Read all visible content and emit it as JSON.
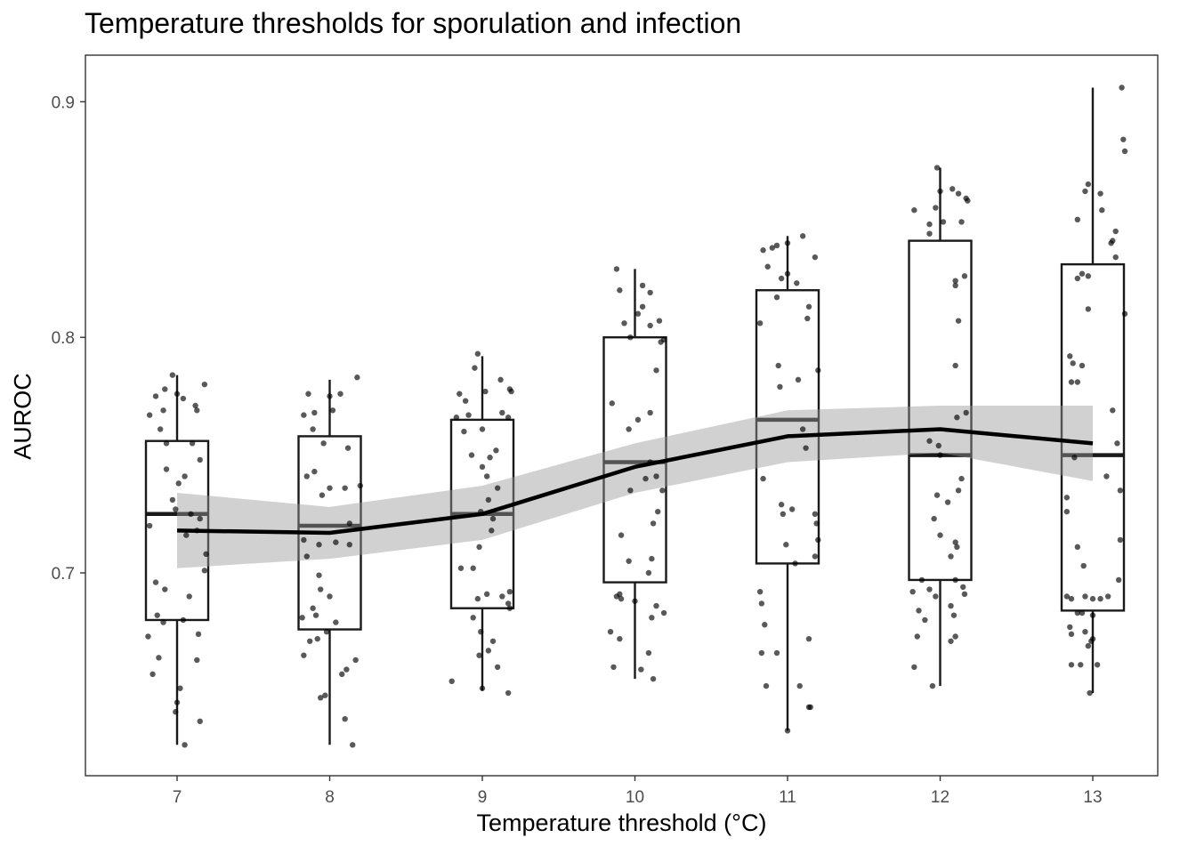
{
  "chart_data": {
    "type": "boxplot",
    "title": "Temperature thresholds for sporulation and infection",
    "xlabel": "Temperature threshold (°C)",
    "ylabel": "AUROC",
    "categories": [
      "7",
      "8",
      "9",
      "10",
      "11",
      "12",
      "13"
    ],
    "ylim": [
      0.62,
      0.92
    ],
    "yticks": [
      0.7,
      0.8,
      0.9
    ],
    "ytick_labels": [
      "0.7",
      "0.8",
      "0.9"
    ],
    "grid": false,
    "boxes": [
      {
        "category": "7",
        "whisker_low": 0.627,
        "q1": 0.68,
        "median": 0.725,
        "q3": 0.756,
        "whisker_high": 0.784
      },
      {
        "category": "8",
        "whisker_low": 0.627,
        "q1": 0.676,
        "median": 0.72,
        "q3": 0.758,
        "whisker_high": 0.782
      },
      {
        "category": "9",
        "whisker_low": 0.65,
        "q1": 0.685,
        "median": 0.725,
        "q3": 0.765,
        "whisker_high": 0.792
      },
      {
        "category": "10",
        "whisker_low": 0.655,
        "q1": 0.696,
        "median": 0.747,
        "q3": 0.8,
        "whisker_high": 0.829
      },
      {
        "category": "11",
        "whisker_low": 0.633,
        "q1": 0.704,
        "median": 0.765,
        "q3": 0.82,
        "whisker_high": 0.843
      },
      {
        "category": "12",
        "whisker_low": 0.652,
        "q1": 0.697,
        "median": 0.75,
        "q3": 0.841,
        "whisker_high": 0.872
      },
      {
        "category": "13",
        "whisker_low": 0.649,
        "q1": 0.684,
        "median": 0.75,
        "q3": 0.831,
        "whisker_high": 0.906
      }
    ],
    "trend_line": {
      "x": [
        7,
        8,
        9,
        10,
        11,
        12,
        13
      ],
      "y": [
        0.718,
        0.717,
        0.725,
        0.745,
        0.758,
        0.761,
        0.755
      ],
      "ci_lower": [
        0.702,
        0.706,
        0.714,
        0.734,
        0.747,
        0.751,
        0.739
      ],
      "ci_upper": [
        0.734,
        0.728,
        0.737,
        0.755,
        0.769,
        0.771,
        0.771
      ]
    },
    "jitter_points": [
      {
        "x": 6.82,
        "y": 0.767
      },
      {
        "x": 6.86,
        "y": 0.775
      },
      {
        "x": 6.91,
        "y": 0.769
      },
      {
        "x": 6.92,
        "y": 0.778
      },
      {
        "x": 7.0,
        "y": 0.776
      },
      {
        "x": 7.04,
        "y": 0.774
      },
      {
        "x": 7.12,
        "y": 0.771
      },
      {
        "x": 7.13,
        "y": 0.769
      },
      {
        "x": 6.89,
        "y": 0.761
      },
      {
        "x": 6.93,
        "y": 0.755
      },
      {
        "x": 7.1,
        "y": 0.755
      },
      {
        "x": 7.15,
        "y": 0.748
      },
      {
        "x": 6.93,
        "y": 0.744
      },
      {
        "x": 7.05,
        "y": 0.741
      },
      {
        "x": 7.01,
        "y": 0.738
      },
      {
        "x": 6.97,
        "y": 0.731
      },
      {
        "x": 6.99,
        "y": 0.727
      },
      {
        "x": 7.09,
        "y": 0.725
      },
      {
        "x": 7.15,
        "y": 0.723
      },
      {
        "x": 6.82,
        "y": 0.72
      },
      {
        "x": 7.13,
        "y": 0.718
      },
      {
        "x": 7.06,
        "y": 0.716
      },
      {
        "x": 7.19,
        "y": 0.708
      },
      {
        "x": 7.18,
        "y": 0.701
      },
      {
        "x": 6.86,
        "y": 0.696
      },
      {
        "x": 6.92,
        "y": 0.693
      },
      {
        "x": 7.08,
        "y": 0.69
      },
      {
        "x": 6.87,
        "y": 0.682
      },
      {
        "x": 6.91,
        "y": 0.679
      },
      {
        "x": 7.04,
        "y": 0.68
      },
      {
        "x": 7.14,
        "y": 0.674
      },
      {
        "x": 6.81,
        "y": 0.673
      },
      {
        "x": 6.88,
        "y": 0.664
      },
      {
        "x": 7.13,
        "y": 0.663
      },
      {
        "x": 6.84,
        "y": 0.657
      },
      {
        "x": 7.02,
        "y": 0.651
      },
      {
        "x": 7.0,
        "y": 0.645
      },
      {
        "x": 6.99,
        "y": 0.641
      },
      {
        "x": 7.15,
        "y": 0.637
      },
      {
        "x": 7.05,
        "y": 0.627
      },
      {
        "x": 7.18,
        "y": 0.78
      },
      {
        "x": 6.97,
        "y": 0.784
      },
      {
        "x": 7.83,
        "y": 0.767
      },
      {
        "x": 7.86,
        "y": 0.776
      },
      {
        "x": 7.9,
        "y": 0.768
      },
      {
        "x": 8.0,
        "y": 0.775
      },
      {
        "x": 8.02,
        "y": 0.769
      },
      {
        "x": 8.07,
        "y": 0.776
      },
      {
        "x": 8.18,
        "y": 0.783
      },
      {
        "x": 7.89,
        "y": 0.761
      },
      {
        "x": 7.96,
        "y": 0.755
      },
      {
        "x": 8.12,
        "y": 0.753
      },
      {
        "x": 7.85,
        "y": 0.741
      },
      {
        "x": 7.9,
        "y": 0.743
      },
      {
        "x": 8.0,
        "y": 0.736
      },
      {
        "x": 8.1,
        "y": 0.736
      },
      {
        "x": 8.2,
        "y": 0.737
      },
      {
        "x": 7.95,
        "y": 0.733
      },
      {
        "x": 8.13,
        "y": 0.721
      },
      {
        "x": 7.83,
        "y": 0.714
      },
      {
        "x": 8.04,
        "y": 0.713
      },
      {
        "x": 7.93,
        "y": 0.712
      },
      {
        "x": 8.13,
        "y": 0.712
      },
      {
        "x": 7.85,
        "y": 0.707
      },
      {
        "x": 7.93,
        "y": 0.699
      },
      {
        "x": 7.94,
        "y": 0.693
      },
      {
        "x": 8.0,
        "y": 0.69
      },
      {
        "x": 7.89,
        "y": 0.685
      },
      {
        "x": 7.82,
        "y": 0.681
      },
      {
        "x": 7.91,
        "y": 0.682
      },
      {
        "x": 8.04,
        "y": 0.679
      },
      {
        "x": 7.98,
        "y": 0.675
      },
      {
        "x": 7.87,
        "y": 0.671
      },
      {
        "x": 7.92,
        "y": 0.672
      },
      {
        "x": 7.83,
        "y": 0.665
      },
      {
        "x": 8.17,
        "y": 0.663
      },
      {
        "x": 8.11,
        "y": 0.659
      },
      {
        "x": 8.08,
        "y": 0.657
      },
      {
        "x": 7.97,
        "y": 0.648
      },
      {
        "x": 8.1,
        "y": 0.638
      },
      {
        "x": 8.15,
        "y": 0.627
      },
      {
        "x": 7.94,
        "y": 0.647
      },
      {
        "x": 8.85,
        "y": 0.776
      },
      {
        "x": 8.89,
        "y": 0.773
      },
      {
        "x": 8.95,
        "y": 0.787
      },
      {
        "x": 8.97,
        "y": 0.793
      },
      {
        "x": 9.02,
        "y": 0.777
      },
      {
        "x": 9.12,
        "y": 0.782
      },
      {
        "x": 9.18,
        "y": 0.778
      },
      {
        "x": 9.19,
        "y": 0.777
      },
      {
        "x": 8.83,
        "y": 0.766
      },
      {
        "x": 8.91,
        "y": 0.767
      },
      {
        "x": 9.13,
        "y": 0.768
      },
      {
        "x": 9.17,
        "y": 0.766
      },
      {
        "x": 9.0,
        "y": 0.761
      },
      {
        "x": 8.88,
        "y": 0.76
      },
      {
        "x": 8.93,
        "y": 0.75
      },
      {
        "x": 9.05,
        "y": 0.749
      },
      {
        "x": 9.09,
        "y": 0.752
      },
      {
        "x": 9.0,
        "y": 0.745
      },
      {
        "x": 9.03,
        "y": 0.741
      },
      {
        "x": 9.1,
        "y": 0.736
      },
      {
        "x": 9.04,
        "y": 0.731
      },
      {
        "x": 8.99,
        "y": 0.726
      },
      {
        "x": 9.07,
        "y": 0.723
      },
      {
        "x": 9.06,
        "y": 0.718
      },
      {
        "x": 8.98,
        "y": 0.711
      },
      {
        "x": 8.86,
        "y": 0.702
      },
      {
        "x": 8.94,
        "y": 0.702
      },
      {
        "x": 9.18,
        "y": 0.692
      },
      {
        "x": 8.97,
        "y": 0.689
      },
      {
        "x": 9.03,
        "y": 0.691
      },
      {
        "x": 9.13,
        "y": 0.69
      },
      {
        "x": 9.17,
        "y": 0.687
      },
      {
        "x": 9.18,
        "y": 0.685
      },
      {
        "x": 8.94,
        "y": 0.681
      },
      {
        "x": 8.99,
        "y": 0.675
      },
      {
        "x": 9.07,
        "y": 0.671
      },
      {
        "x": 9.04,
        "y": 0.667
      },
      {
        "x": 8.98,
        "y": 0.665
      },
      {
        "x": 9.1,
        "y": 0.66
      },
      {
        "x": 8.8,
        "y": 0.654
      },
      {
        "x": 9.0,
        "y": 0.651
      },
      {
        "x": 9.17,
        "y": 0.649
      },
      {
        "x": 9.88,
        "y": 0.829
      },
      {
        "x": 10.05,
        "y": 0.822
      },
      {
        "x": 9.9,
        "y": 0.82
      },
      {
        "x": 10.1,
        "y": 0.819
      },
      {
        "x": 10.05,
        "y": 0.813
      },
      {
        "x": 10.02,
        "y": 0.81
      },
      {
        "x": 10.1,
        "y": 0.805
      },
      {
        "x": 10.16,
        "y": 0.807
      },
      {
        "x": 9.93,
        "y": 0.806
      },
      {
        "x": 9.97,
        "y": 0.8
      },
      {
        "x": 10.19,
        "y": 0.799
      },
      {
        "x": 10.17,
        "y": 0.798
      },
      {
        "x": 10.14,
        "y": 0.786
      },
      {
        "x": 9.85,
        "y": 0.772
      },
      {
        "x": 9.96,
        "y": 0.761
      },
      {
        "x": 10.02,
        "y": 0.765
      },
      {
        "x": 10.1,
        "y": 0.768
      },
      {
        "x": 10.1,
        "y": 0.747
      },
      {
        "x": 10.14,
        "y": 0.741
      },
      {
        "x": 10.07,
        "y": 0.74
      },
      {
        "x": 10.18,
        "y": 0.735
      },
      {
        "x": 9.97,
        "y": 0.735
      },
      {
        "x": 10.15,
        "y": 0.726
      },
      {
        "x": 10.12,
        "y": 0.721
      },
      {
        "x": 9.91,
        "y": 0.716
      },
      {
        "x": 9.96,
        "y": 0.705
      },
      {
        "x": 10.11,
        "y": 0.706
      },
      {
        "x": 10.09,
        "y": 0.7
      },
      {
        "x": 9.9,
        "y": 0.691
      },
      {
        "x": 9.88,
        "y": 0.69
      },
      {
        "x": 9.91,
        "y": 0.689
      },
      {
        "x": 10.0,
        "y": 0.688
      },
      {
        "x": 10.14,
        "y": 0.686
      },
      {
        "x": 10.19,
        "y": 0.683
      },
      {
        "x": 10.11,
        "y": 0.681
      },
      {
        "x": 9.84,
        "y": 0.675
      },
      {
        "x": 9.9,
        "y": 0.672
      },
      {
        "x": 10.09,
        "y": 0.666
      },
      {
        "x": 9.86,
        "y": 0.66
      },
      {
        "x": 10.12,
        "y": 0.655
      },
      {
        "x": 10.04,
        "y": 0.659
      },
      {
        "x": 10.84,
        "y": 0.837
      },
      {
        "x": 10.9,
        "y": 0.838
      },
      {
        "x": 10.93,
        "y": 0.839
      },
      {
        "x": 11.0,
        "y": 0.84
      },
      {
        "x": 11.1,
        "y": 0.843
      },
      {
        "x": 11.18,
        "y": 0.834
      },
      {
        "x": 10.87,
        "y": 0.83
      },
      {
        "x": 10.96,
        "y": 0.825
      },
      {
        "x": 11.0,
        "y": 0.827
      },
      {
        "x": 11.06,
        "y": 0.823
      },
      {
        "x": 10.93,
        "y": 0.817
      },
      {
        "x": 11.14,
        "y": 0.813
      },
      {
        "x": 11.13,
        "y": 0.808
      },
      {
        "x": 10.82,
        "y": 0.806
      },
      {
        "x": 10.94,
        "y": 0.788
      },
      {
        "x": 11.2,
        "y": 0.786
      },
      {
        "x": 11.07,
        "y": 0.782
      },
      {
        "x": 10.95,
        "y": 0.779
      },
      {
        "x": 11.1,
        "y": 0.761
      },
      {
        "x": 11.12,
        "y": 0.753
      },
      {
        "x": 10.84,
        "y": 0.74
      },
      {
        "x": 10.96,
        "y": 0.729
      },
      {
        "x": 11.03,
        "y": 0.727
      },
      {
        "x": 10.97,
        "y": 0.725
      },
      {
        "x": 11.18,
        "y": 0.725
      },
      {
        "x": 11.19,
        "y": 0.721
      },
      {
        "x": 10.99,
        "y": 0.712
      },
      {
        "x": 11.2,
        "y": 0.714
      },
      {
        "x": 11.05,
        "y": 0.704
      },
      {
        "x": 10.82,
        "y": 0.692
      },
      {
        "x": 10.83,
        "y": 0.687
      },
      {
        "x": 10.85,
        "y": 0.678
      },
      {
        "x": 11.14,
        "y": 0.672
      },
      {
        "x": 10.83,
        "y": 0.666
      },
      {
        "x": 10.93,
        "y": 0.666
      },
      {
        "x": 10.86,
        "y": 0.652
      },
      {
        "x": 11.08,
        "y": 0.652
      },
      {
        "x": 11.15,
        "y": 0.643
      },
      {
        "x": 11.14,
        "y": 0.643
      },
      {
        "x": 11.0,
        "y": 0.633
      },
      {
        "x": 11.18,
        "y": 0.707
      },
      {
        "x": 11.83,
        "y": 0.854
      },
      {
        "x": 11.93,
        "y": 0.848
      },
      {
        "x": 11.97,
        "y": 0.855
      },
      {
        "x": 12.0,
        "y": 0.862
      },
      {
        "x": 12.08,
        "y": 0.863
      },
      {
        "x": 12.12,
        "y": 0.861
      },
      {
        "x": 12.17,
        "y": 0.859
      },
      {
        "x": 12.18,
        "y": 0.858
      },
      {
        "x": 12.02,
        "y": 0.849
      },
      {
        "x": 12.14,
        "y": 0.849
      },
      {
        "x": 11.93,
        "y": 0.844
      },
      {
        "x": 11.98,
        "y": 0.872
      },
      {
        "x": 12.16,
        "y": 0.826
      },
      {
        "x": 12.1,
        "y": 0.822
      },
      {
        "x": 12.1,
        "y": 0.824
      },
      {
        "x": 12.12,
        "y": 0.807
      },
      {
        "x": 12.1,
        "y": 0.788
      },
      {
        "x": 12.17,
        "y": 0.768
      },
      {
        "x": 12.11,
        "y": 0.766
      },
      {
        "x": 11.93,
        "y": 0.756
      },
      {
        "x": 11.99,
        "y": 0.754
      },
      {
        "x": 12.0,
        "y": 0.75
      },
      {
        "x": 12.14,
        "y": 0.74
      },
      {
        "x": 12.12,
        "y": 0.735
      },
      {
        "x": 11.98,
        "y": 0.733
      },
      {
        "x": 12.05,
        "y": 0.73
      },
      {
        "x": 11.96,
        "y": 0.723
      },
      {
        "x": 12.0,
        "y": 0.716
      },
      {
        "x": 12.1,
        "y": 0.713
      },
      {
        "x": 12.11,
        "y": 0.711
      },
      {
        "x": 12.07,
        "y": 0.707
      },
      {
        "x": 12.1,
        "y": 0.697
      },
      {
        "x": 12.15,
        "y": 0.694
      },
      {
        "x": 11.93,
        "y": 0.693
      },
      {
        "x": 11.82,
        "y": 0.692
      },
      {
        "x": 11.97,
        "y": 0.69
      },
      {
        "x": 12.16,
        "y": 0.691
      },
      {
        "x": 12.07,
        "y": 0.686
      },
      {
        "x": 11.86,
        "y": 0.684
      },
      {
        "x": 12.09,
        "y": 0.682
      },
      {
        "x": 11.9,
        "y": 0.68
      },
      {
        "x": 12.1,
        "y": 0.673
      },
      {
        "x": 11.85,
        "y": 0.673
      },
      {
        "x": 12.07,
        "y": 0.671
      },
      {
        "x": 11.83,
        "y": 0.66
      },
      {
        "x": 11.95,
        "y": 0.652
      },
      {
        "x": 11.88,
        "y": 0.697
      },
      {
        "x": 13.19,
        "y": 0.906
      },
      {
        "x": 13.2,
        "y": 0.884
      },
      {
        "x": 13.21,
        "y": 0.879
      },
      {
        "x": 12.97,
        "y": 0.865
      },
      {
        "x": 12.95,
        "y": 0.862
      },
      {
        "x": 13.05,
        "y": 0.861
      },
      {
        "x": 12.9,
        "y": 0.85
      },
      {
        "x": 13.15,
        "y": 0.845
      },
      {
        "x": 13.06,
        "y": 0.854
      },
      {
        "x": 13.13,
        "y": 0.841
      },
      {
        "x": 13.12,
        "y": 0.84
      },
      {
        "x": 13.15,
        "y": 0.834
      },
      {
        "x": 12.93,
        "y": 0.827
      },
      {
        "x": 12.9,
        "y": 0.825
      },
      {
        "x": 12.97,
        "y": 0.826
      },
      {
        "x": 12.97,
        "y": 0.812
      },
      {
        "x": 13.21,
        "y": 0.81
      },
      {
        "x": 12.85,
        "y": 0.792
      },
      {
        "x": 12.87,
        "y": 0.789
      },
      {
        "x": 12.93,
        "y": 0.788
      },
      {
        "x": 12.86,
        "y": 0.781
      },
      {
        "x": 12.9,
        "y": 0.781
      },
      {
        "x": 13.13,
        "y": 0.769
      },
      {
        "x": 13.16,
        "y": 0.755
      },
      {
        "x": 12.88,
        "y": 0.749
      },
      {
        "x": 13.09,
        "y": 0.741
      },
      {
        "x": 13.18,
        "y": 0.735
      },
      {
        "x": 12.83,
        "y": 0.732
      },
      {
        "x": 12.83,
        "y": 0.726
      },
      {
        "x": 13.18,
        "y": 0.714
      },
      {
        "x": 12.9,
        "y": 0.711
      },
      {
        "x": 12.94,
        "y": 0.703
      },
      {
        "x": 12.83,
        "y": 0.69
      },
      {
        "x": 12.86,
        "y": 0.689
      },
      {
        "x": 12.95,
        "y": 0.69
      },
      {
        "x": 13.0,
        "y": 0.689
      },
      {
        "x": 13.05,
        "y": 0.689
      },
      {
        "x": 13.1,
        "y": 0.69
      },
      {
        "x": 13.17,
        "y": 0.697
      },
      {
        "x": 12.9,
        "y": 0.683
      },
      {
        "x": 12.93,
        "y": 0.683
      },
      {
        "x": 13.0,
        "y": 0.682
      },
      {
        "x": 12.85,
        "y": 0.677
      },
      {
        "x": 12.95,
        "y": 0.675
      },
      {
        "x": 13.0,
        "y": 0.672
      },
      {
        "x": 12.86,
        "y": 0.674
      },
      {
        "x": 12.97,
        "y": 0.669
      },
      {
        "x": 12.99,
        "y": 0.671
      },
      {
        "x": 12.92,
        "y": 0.661
      },
      {
        "x": 12.86,
        "y": 0.661
      },
      {
        "x": 13.03,
        "y": 0.661
      },
      {
        "x": 12.98,
        "y": 0.649
      }
    ]
  }
}
